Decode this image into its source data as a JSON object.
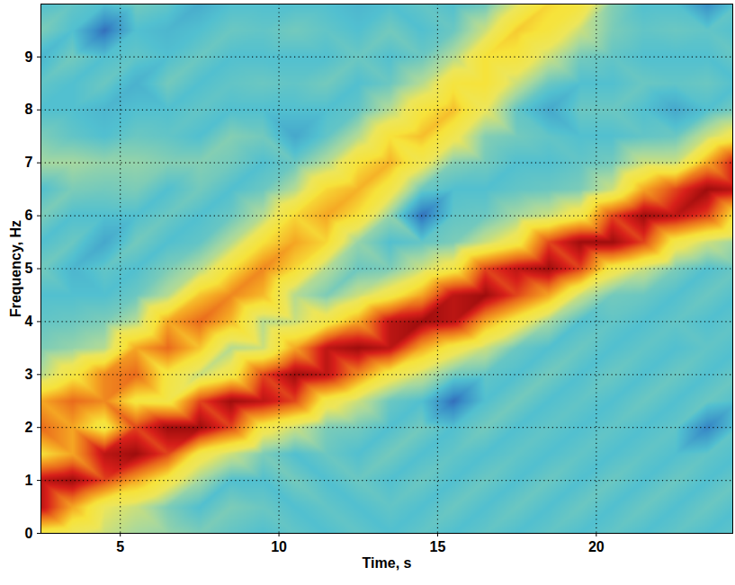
{
  "chart_data": {
    "type": "heatmap",
    "x_label": "Time, s",
    "y_label": "Frequency, Hz",
    "xlim": [
      2.5,
      24.3
    ],
    "ylim": [
      0,
      10
    ],
    "xticks": [
      5,
      10,
      15,
      20
    ],
    "yticks": [
      0,
      1,
      2,
      3,
      4,
      5,
      6,
      7,
      8,
      9
    ],
    "grid": true,
    "zlim": [
      0,
      10
    ],
    "x": [
      2.5,
      3.5,
      4.5,
      5.5,
      6.5,
      7.5,
      8.5,
      9.5,
      10.5,
      11.5,
      12.5,
      13.5,
      14.5,
      15.5,
      16.5,
      17.5,
      18.5,
      19.5,
      20.5,
      21.5,
      22.5,
      23.5,
      24.5
    ],
    "y": [
      0,
      0.5,
      1,
      1.5,
      2,
      2.5,
      3,
      3.5,
      4,
      4.5,
      5,
      5.5,
      6,
      6.5,
      7,
      7.5,
      8,
      8.5,
      9,
      9.5,
      10
    ],
    "z": [
      [
        5.5,
        9.5,
        9.5,
        6,
        8,
        7,
        4.2,
        3.5,
        3.2,
        3,
        3.4,
        3,
        3.5,
        3,
        4,
        3.5,
        3,
        3.2,
        2.8,
        3.5,
        3
      ],
      [
        5,
        7,
        10,
        7,
        7,
        8,
        5.7,
        3.8,
        3.3,
        3,
        2.8,
        3.3,
        3,
        3.5,
        4,
        3.2,
        3,
        3,
        3.4,
        3,
        3.2
      ],
      [
        4.5,
        5,
        8.5,
        9.5,
        5.5,
        7.5,
        7.5,
        4.2,
        3.5,
        3,
        3.2,
        2.5,
        3,
        3.4,
        3.8,
        3,
        2.8,
        3.3,
        3,
        1.5,
        3
      ],
      [
        4,
        4.5,
        7,
        10,
        8.5,
        5.7,
        8,
        7,
        4.2,
        3.3,
        3,
        3.4,
        3,
        3.5,
        3.8,
        3.3,
        3,
        2.7,
        3.2,
        3,
        3.4
      ],
      [
        3.8,
        3.5,
        5.5,
        8.5,
        10,
        5.5,
        5.7,
        8,
        7,
        4.2,
        3.5,
        3,
        3.3,
        3,
        3.6,
        3.2,
        3,
        3.4,
        3,
        2.8,
        3.2
      ],
      [
        3.5,
        3,
        4,
        5.5,
        10,
        8.5,
        4.5,
        6.5,
        8,
        6.5,
        4.2,
        3.2,
        3,
        3.4,
        3.6,
        3,
        3.2,
        3,
        3.3,
        3,
        2.6
      ],
      [
        3.2,
        3.5,
        3,
        4.5,
        8.5,
        10,
        5.5,
        4.2,
        6.7,
        7.5,
        6,
        4.2,
        3.3,
        3,
        3.4,
        3.6,
        3,
        3.2,
        3,
        3.3,
        3
      ],
      [
        3,
        3.3,
        3,
        3.5,
        5.5,
        9.5,
        8.5,
        4.5,
        4.2,
        6.7,
        7.5,
        6,
        4.2,
        3.3,
        3,
        3.4,
        3,
        3.3,
        3,
        3.2,
        3
      ],
      [
        3.2,
        3,
        3.4,
        3,
        4.5,
        8.5,
        10,
        7,
        4.5,
        4.2,
        6.2,
        7,
        6.2,
        4.2,
        3.3,
        2.5,
        3,
        3.2,
        3,
        3.4,
        3
      ],
      [
        3,
        3.2,
        3,
        3.3,
        3.5,
        5.5,
        9.5,
        9.5,
        5.5,
        3.5,
        4.2,
        6.2,
        7,
        6.2,
        4.2,
        3.2,
        3,
        3.4,
        3,
        3.2,
        3
      ],
      [
        3.2,
        3,
        3.3,
        3,
        3.4,
        4.5,
        7.5,
        10,
        7,
        4.5,
        3.3,
        3.8,
        6,
        6.8,
        6,
        4.2,
        3.2,
        3,
        3.3,
        3,
        2.8
      ],
      [
        3,
        3.2,
        3,
        3.4,
        3,
        3.3,
        5.5,
        9.5,
        9.5,
        5.5,
        3.5,
        3,
        3.8,
        5.5,
        6.8,
        6,
        4.2,
        3.3,
        3,
        3.4,
        3
      ],
      [
        3.2,
        3,
        3.3,
        3,
        3.4,
        3,
        4.5,
        7,
        10,
        7,
        4.5,
        3.2,
        1.5,
        3.3,
        5.3,
        6.6,
        5.8,
        4.2,
        3.3,
        3,
        3.2
      ],
      [
        3,
        3.3,
        3,
        3.2,
        3,
        1.5,
        3.4,
        5.5,
        9.5,
        9.5,
        5.5,
        3.5,
        3.2,
        3,
        3.6,
        5.3,
        6.6,
        5.8,
        4.2,
        3.3,
        3
      ],
      [
        3.2,
        3,
        3.3,
        3,
        3.4,
        3,
        3.2,
        4.5,
        7,
        10,
        8.5,
        4.5,
        3.3,
        3,
        3.4,
        3.6,
        5,
        6,
        6,
        4.5,
        3.3
      ],
      [
        3,
        3.3,
        3,
        3.2,
        3,
        3.4,
        3,
        3.3,
        5.5,
        8.5,
        9.5,
        5.5,
        4,
        3.2,
        3,
        3.4,
        3.2,
        4.5,
        5.8,
        6.4,
        4.8
      ],
      [
        3.2,
        3,
        3.3,
        3,
        3.2,
        3,
        3.4,
        3,
        4,
        7,
        10,
        8.5,
        4.5,
        3.3,
        3,
        3.2,
        2.5,
        3.3,
        4.5,
        5.8,
        6.2
      ],
      [
        3,
        3.3,
        3,
        3.2,
        3,
        3.2,
        3,
        3.3,
        3,
        4.5,
        8.5,
        10,
        5.5,
        3.5,
        3.2,
        3,
        3.3,
        3,
        3.4,
        4.5,
        5.8
      ],
      [
        3.2,
        3,
        3.3,
        3,
        3.2,
        3,
        3.3,
        3,
        3.2,
        3.4,
        5.5,
        10,
        8.5,
        4.5,
        3.4,
        3,
        3.3,
        3,
        3.2,
        3.5,
        3.6
      ],
      [
        3,
        3.3,
        3,
        3.2,
        3,
        3.3,
        3,
        3.2,
        3,
        3.3,
        4.5,
        8.5,
        10,
        7,
        4.5,
        3.2,
        3,
        3.3,
        3,
        3.2,
        3
      ],
      [
        3.2,
        3,
        3.3,
        3,
        3.2,
        3,
        3.3,
        3,
        3.2,
        3,
        3.5,
        5.5,
        9.5,
        8.5,
        4.5,
        3.3,
        2.5,
        3.2,
        3,
        3.3,
        3
      ],
      [
        3,
        3.3,
        3,
        3.2,
        1.8,
        3.3,
        3,
        3.2,
        3,
        3.3,
        3,
        4.5,
        8.5,
        10,
        7,
        4.5,
        3,
        3.3,
        3,
        3.2,
        2
      ],
      [
        3.2,
        3,
        3.3,
        3,
        3.2,
        3,
        3.3,
        3,
        3.2,
        3,
        3.3,
        3.8,
        5.5,
        9.5,
        9.5,
        5.5,
        3.5,
        3,
        3.3,
        3,
        3.2
      ]
    ]
  }
}
